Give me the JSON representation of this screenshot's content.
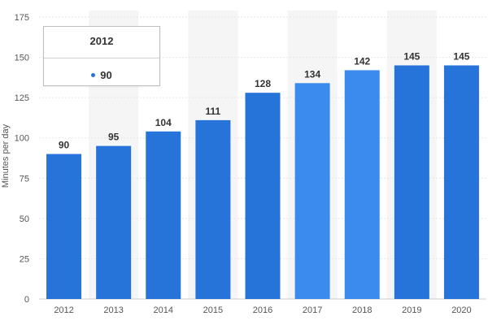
{
  "chart_data": {
    "type": "bar",
    "categories": [
      "2012",
      "2013",
      "2014",
      "2015",
      "2016",
      "2017",
      "2018",
      "2019",
      "2020"
    ],
    "values": [
      90,
      95,
      104,
      111,
      128,
      134,
      142,
      145,
      145
    ],
    "ylabel": "Minutes per day",
    "ylim": [
      0,
      175
    ],
    "yticks": [
      0,
      25,
      50,
      75,
      100,
      125,
      150,
      175
    ],
    "grid": true,
    "legend": "none",
    "highlighted_bars": [
      "2017",
      "2018"
    ],
    "colors": {
      "bar": "#2673d9",
      "bar_highlight": "#3b8bee",
      "column_band": "#f5f5f5",
      "grid": "#e6e6e6"
    }
  },
  "tooltip": {
    "title": "2012",
    "value": "90",
    "dot_color": "#2673d9"
  }
}
